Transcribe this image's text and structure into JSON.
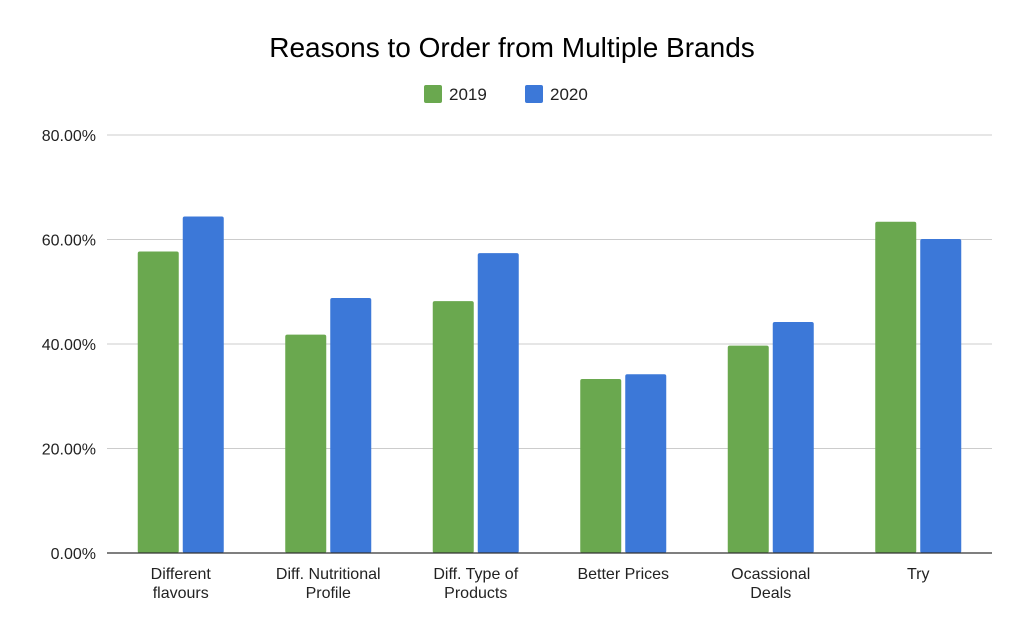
{
  "chart_data": {
    "type": "bar",
    "title": "Reasons to Order from Multiple Brands",
    "xlabel": "",
    "ylabel": "",
    "ylim": [
      0,
      0.8
    ],
    "y_ticks": [
      "0.00%",
      "20.00%",
      "40.00%",
      "60.00%",
      "80.00%"
    ],
    "categories": [
      [
        "Different",
        "flavours"
      ],
      [
        "Diff. Nutritional",
        "Profile"
      ],
      [
        "Diff. Type of",
        "Products"
      ],
      [
        "Better Prices"
      ],
      [
        "Ocassional",
        "Deals"
      ],
      [
        "Try"
      ]
    ],
    "series": [
      {
        "name": "2019",
        "color": "#6aa84f",
        "values": [
          0.577,
          0.418,
          0.482,
          0.333,
          0.397,
          0.634
        ]
      },
      {
        "name": "2020",
        "color": "#3c78d8",
        "values": [
          0.644,
          0.488,
          0.574,
          0.342,
          0.442,
          0.601
        ]
      }
    ],
    "grid": true,
    "legend_position": "top-center"
  }
}
